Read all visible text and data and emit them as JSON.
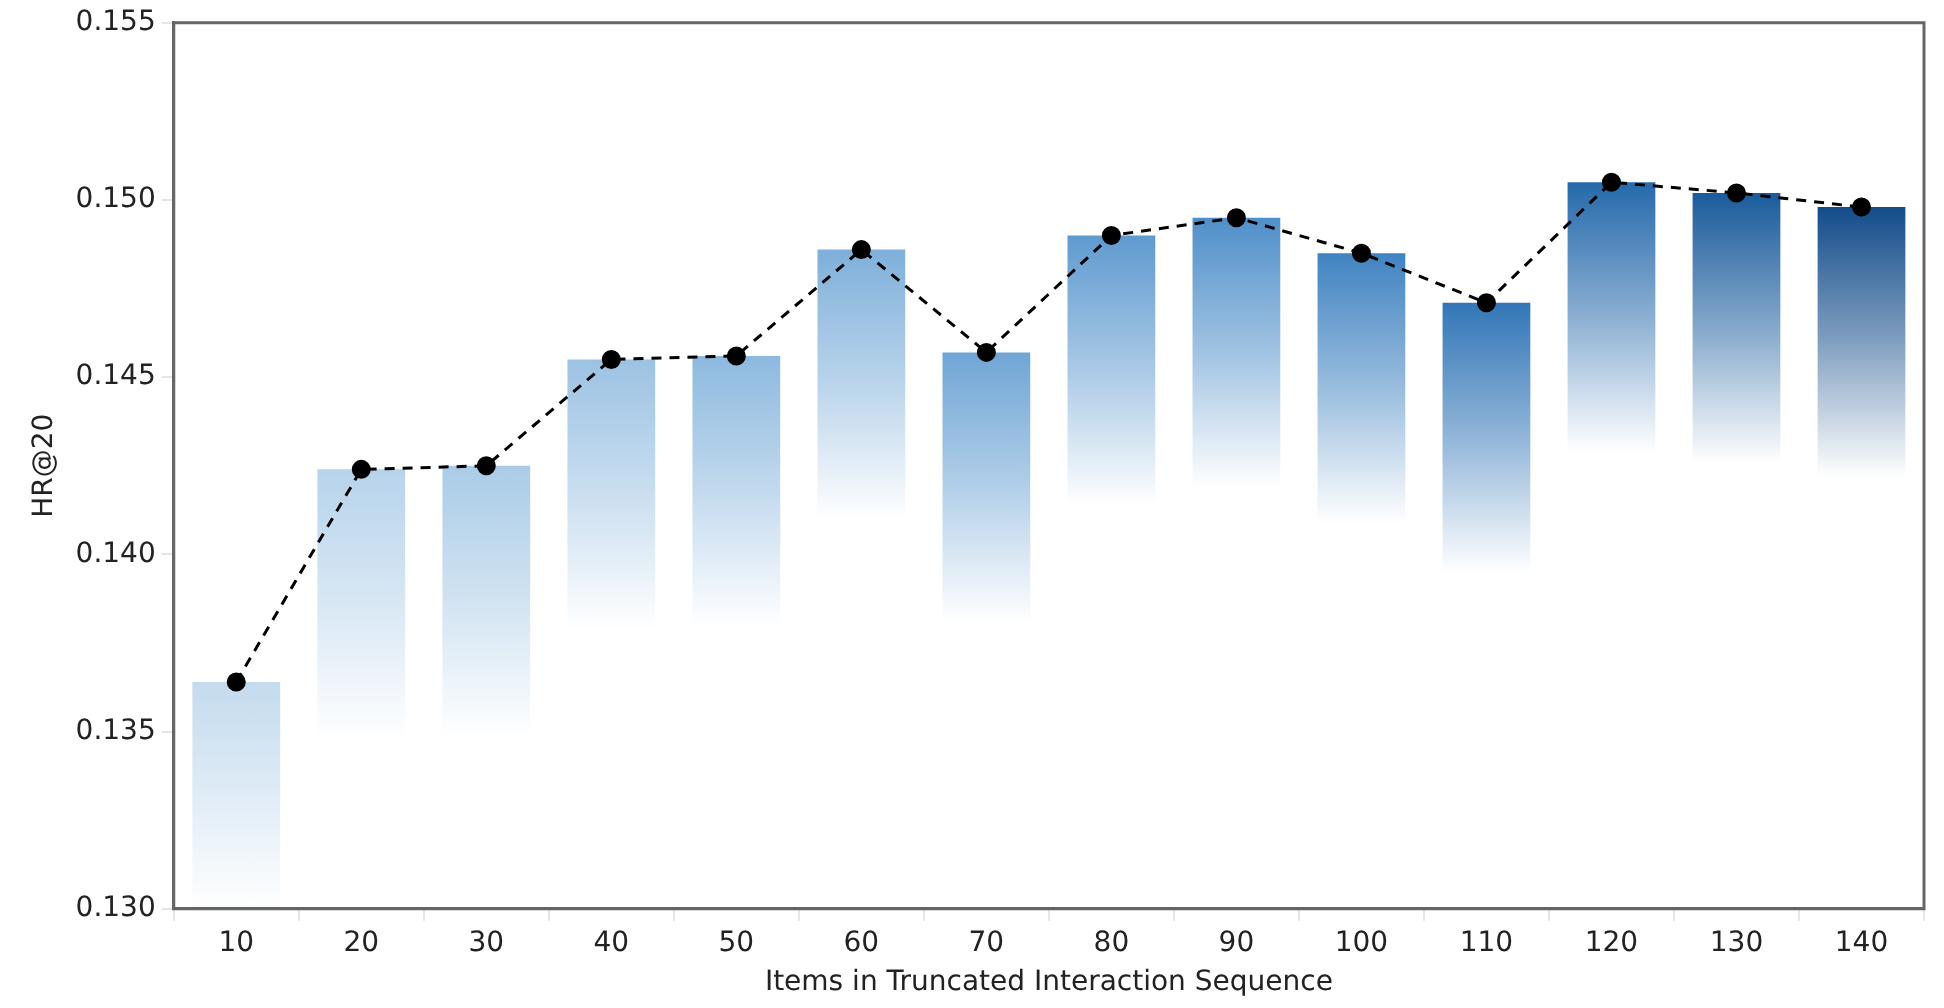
{
  "chart_data": {
    "type": "bar",
    "xlabel": "Items in Truncated Interaction Sequence",
    "ylabel": "HR@20",
    "categories": [
      "10",
      "20",
      "30",
      "40",
      "50",
      "60",
      "70",
      "80",
      "90",
      "100",
      "110",
      "120",
      "130",
      "140"
    ],
    "series": [
      {
        "colors": [
          "#c4dbee",
          "#b7d3eb",
          "#aacbe7",
          "#9cc2e3",
          "#8db9df",
          "#7eafda",
          "#6fa5d5",
          "#5f9acf",
          "#4f8fc9",
          "#4083c1",
          "#3276b7",
          "#2569ab",
          "#1a5b9c",
          "#134c8a"
        ],
        "values": [
          0.1364,
          0.1424,
          0.1425,
          0.1455,
          0.1456,
          0.1486,
          0.1457,
          0.149,
          0.1495,
          0.1485,
          0.1471,
          0.1505,
          0.1502,
          0.1498
        ]
      },
      {
        "type": "line",
        "color": "#000000",
        "values": [
          0.1364,
          0.1424,
          0.1425,
          0.1455,
          0.1456,
          0.1486,
          0.1457,
          0.149,
          0.1495,
          0.1485,
          0.1471,
          0.1505,
          0.1502,
          0.1498
        ]
      }
    ],
    "marker": "circle",
    "line_style": "dashed",
    "grid": false,
    "legend": false,
    "ylim": [
      0.13,
      0.155
    ],
    "yticks": [
      {
        "value": 0.13,
        "label": "0.130"
      },
      {
        "value": 0.135,
        "label": "0.135"
      },
      {
        "value": 0.14,
        "label": "0.140"
      },
      {
        "value": 0.145,
        "label": "0.145"
      },
      {
        "value": 0.15,
        "label": "0.150"
      },
      {
        "value": 0.155,
        "label": "0.155"
      }
    ]
  }
}
